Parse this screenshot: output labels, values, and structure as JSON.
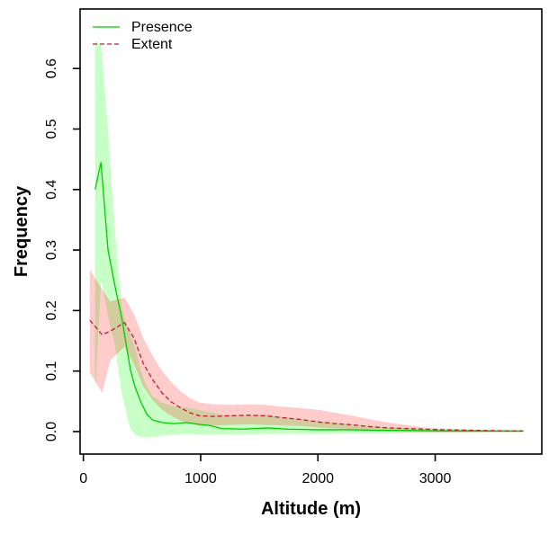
{
  "chart_data": {
    "type": "line",
    "title": "",
    "xlabel": "Altitude (m)",
    "ylabel": "Frequency",
    "x_ticks": [
      0,
      1000,
      2000,
      3000
    ],
    "y_ticks": [
      "0.0",
      "0.1",
      "0.2",
      "0.3",
      "0.4",
      "0.5",
      "0.6"
    ],
    "y_tick_values": [
      0.0,
      0.1,
      0.2,
      0.3,
      0.4,
      0.5,
      0.6
    ],
    "xlim": [
      -28,
      3909
    ],
    "ylim": [
      -0.0372,
      0.6984
    ],
    "grid": false,
    "legend_position": "top-left",
    "legend": [
      {
        "label": "Presence",
        "color": "#00CC00",
        "style": "solid"
      },
      {
        "label": "Extent",
        "color": "#BE1E32",
        "style": "dashed"
      }
    ],
    "series": [
      {
        "name": "Presence",
        "line_color": "#00CC00",
        "band_color": "rgba(0,255,0,0.22)",
        "line_style": "solid",
        "x": [
          100,
          150,
          210,
          270,
          330,
          400,
          440,
          490,
          540,
          590,
          670,
          770,
          880,
          980,
          1080,
          1180,
          1360,
          1570,
          1740,
          2000,
          2280,
          2490,
          2700,
          2900,
          3100,
          3300,
          3500,
          3750
        ],
        "y": [
          0.4,
          0.445,
          0.3,
          0.24,
          0.185,
          0.103,
          0.074,
          0.049,
          0.029,
          0.019,
          0.015,
          0.013,
          0.015,
          0.012,
          0.01,
          0.005,
          0.004,
          0.006,
          0.004,
          0.003,
          0.003,
          0.002,
          0.002,
          0.0015,
          0.001,
          0.001,
          0.001,
          0.001
        ],
        "band_upper": [
          0.645,
          0.64,
          0.5,
          0.33,
          0.2,
          0.16,
          0.14,
          0.1,
          0.075,
          0.058,
          0.048,
          0.042,
          0.04,
          0.036,
          0.032,
          0.028,
          0.027,
          0.028,
          0.022,
          0.017,
          0.012,
          0.008,
          0.006,
          0.004,
          0.003,
          0.003,
          0.002,
          0.002
        ],
        "band_lower": [
          0.06,
          0.25,
          0.19,
          0.14,
          0.06,
          0.005,
          -0.005,
          -0.009,
          -0.01,
          -0.009,
          -0.007,
          -0.005,
          -0.004,
          -0.005,
          -0.005,
          -0.005,
          -0.005,
          -0.004,
          -0.004,
          -0.004,
          -0.003,
          -0.003,
          -0.003,
          -0.002,
          -0.002,
          -0.002,
          -0.001,
          -0.001
        ]
      },
      {
        "name": "Extent",
        "line_color": "#BE1E32",
        "band_color": "rgba(255,0,0,0.2)",
        "line_style": "dashed",
        "x": [
          55,
          160,
          230,
          350,
          430,
          510,
          590,
          670,
          750,
          830,
          910,
          990,
          1100,
          1250,
          1400,
          1550,
          1700,
          1850,
          2000,
          2150,
          2300,
          2450,
          2600,
          2750,
          2900,
          3050,
          3200,
          3350,
          3500,
          3650,
          3750
        ],
        "y": [
          0.184,
          0.16,
          0.166,
          0.18,
          0.155,
          0.113,
          0.086,
          0.064,
          0.049,
          0.039,
          0.031,
          0.026,
          0.025,
          0.026,
          0.027,
          0.026,
          0.023,
          0.02,
          0.016,
          0.013,
          0.011,
          0.008,
          0.006,
          0.005,
          0.004,
          0.003,
          0.0025,
          0.002,
          0.0015,
          0.001,
          0.001
        ],
        "band_upper": [
          0.268,
          0.235,
          0.215,
          0.222,
          0.195,
          0.155,
          0.125,
          0.1,
          0.082,
          0.066,
          0.055,
          0.048,
          0.045,
          0.044,
          0.045,
          0.044,
          0.041,
          0.039,
          0.036,
          0.031,
          0.026,
          0.02,
          0.015,
          0.011,
          0.007,
          0.005,
          0.004,
          0.003,
          0.0025,
          0.002,
          0.002
        ],
        "band_lower": [
          0.098,
          0.064,
          0.118,
          0.14,
          0.112,
          0.075,
          0.052,
          0.036,
          0.026,
          0.018,
          0.013,
          0.01,
          0.01,
          0.011,
          0.012,
          0.011,
          0.01,
          0.009,
          0.007,
          0.005,
          0.004,
          0.002,
          0.0,
          -0.001,
          -0.001,
          -0.001,
          -0.001,
          -0.001,
          -0.001,
          -0.001,
          -0.001
        ]
      }
    ]
  }
}
